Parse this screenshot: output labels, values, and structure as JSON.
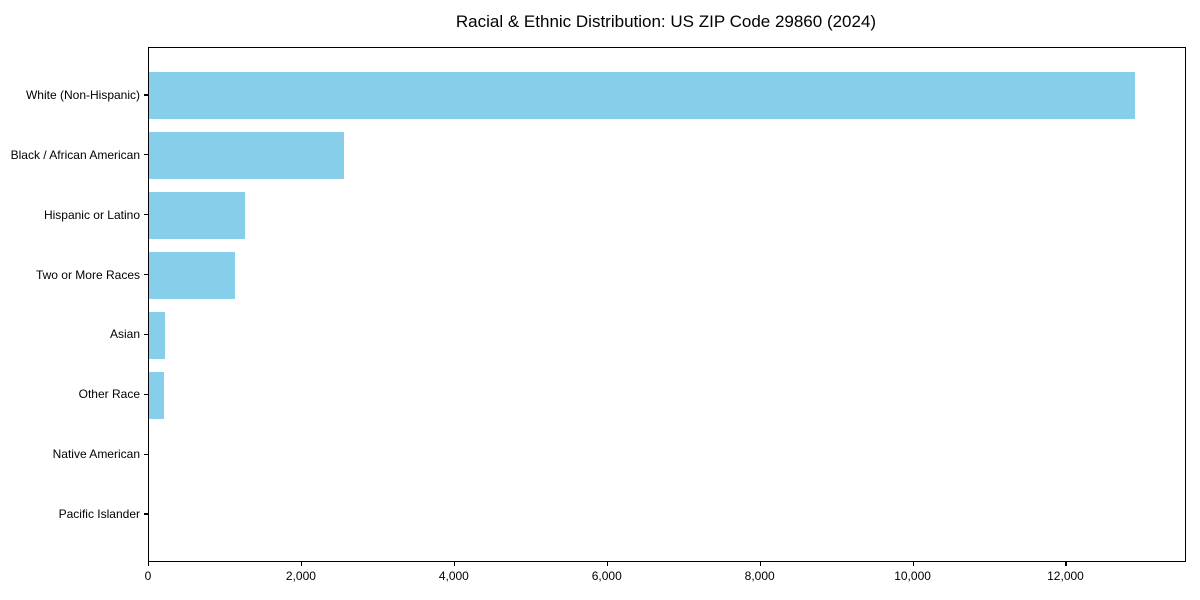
{
  "figure": {
    "title": "Racial & Ethnic Distribution: US ZIP Code 29860 (2024)"
  },
  "chart_data": {
    "type": "bar",
    "orientation": "horizontal",
    "title": "Racial & Ethnic Distribution: US ZIP Code 29860 (2024)",
    "categories": [
      "White (Non-Hispanic)",
      "Black / African American",
      "Hispanic or Latino",
      "Two or More Races",
      "Asian",
      "Other Race",
      "Native American",
      "Pacific Islander"
    ],
    "values": [
      12900,
      2550,
      1250,
      1120,
      210,
      190,
      0,
      0
    ],
    "xlabel": "",
    "ylabel": "",
    "xlim": [
      0,
      13550
    ],
    "x_ticks": [
      0,
      2000,
      4000,
      6000,
      8000,
      10000,
      12000
    ],
    "x_tick_labels": [
      "0",
      "2,000",
      "4,000",
      "6,000",
      "8,000",
      "10,000",
      "12,000"
    ],
    "grid": false,
    "legend": false,
    "bar_color": "#87CEEB",
    "axis_color": "#000000",
    "background_color": "#FFFFFF",
    "sort": "descending"
  }
}
